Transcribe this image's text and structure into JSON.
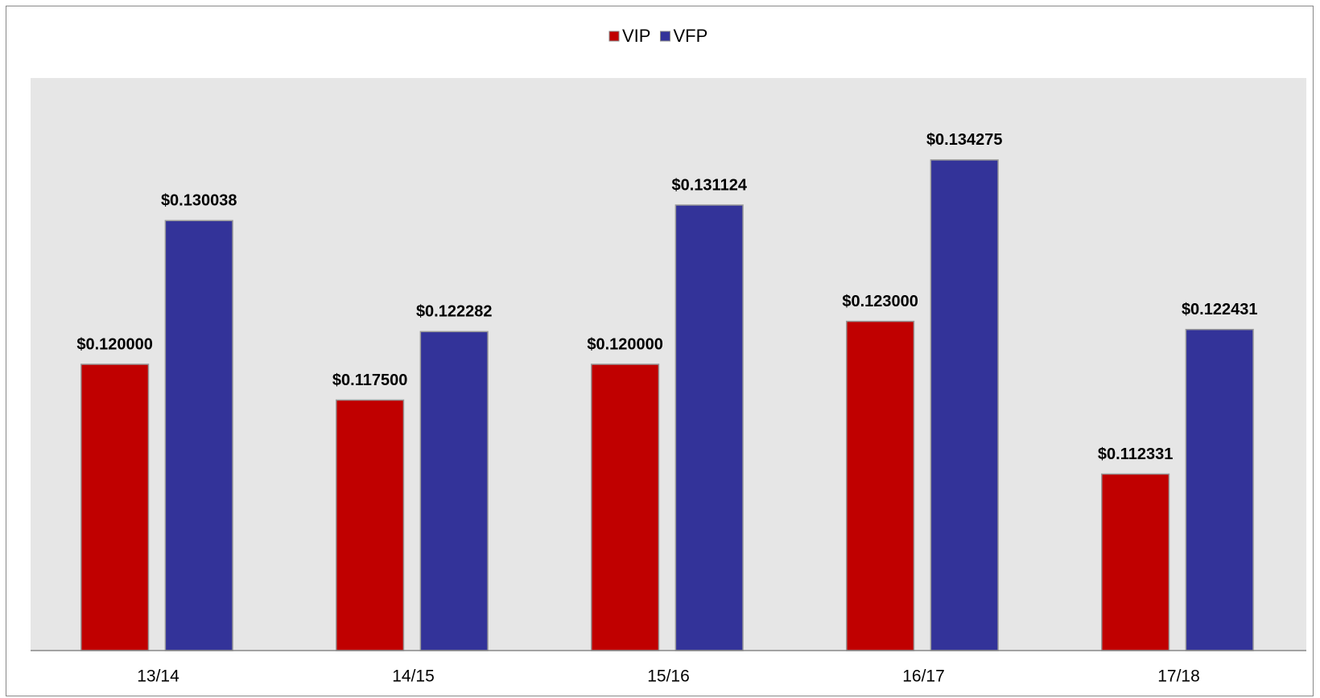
{
  "chart_data": {
    "type": "bar",
    "categories": [
      "13/14",
      "14/15",
      "15/16",
      "16/17",
      "17/18"
    ],
    "series": [
      {
        "name": "VIP",
        "color": "#c00000",
        "values": [
          0.12,
          0.1175,
          0.12,
          0.123,
          0.112331
        ],
        "value_labels": [
          "$0.120000",
          "$0.117500",
          "$0.120000",
          "$0.123000",
          "$0.112331"
        ]
      },
      {
        "name": "VFP",
        "color": "#333399",
        "values": [
          0.130038,
          0.122282,
          0.131124,
          0.134275,
          0.122431
        ],
        "value_labels": [
          "$0.130038",
          "$0.122282",
          "$0.131124",
          "$0.134275",
          "$0.122431"
        ]
      }
    ],
    "ylim": [
      0.1,
      0.14
    ],
    "legend": "top"
  }
}
